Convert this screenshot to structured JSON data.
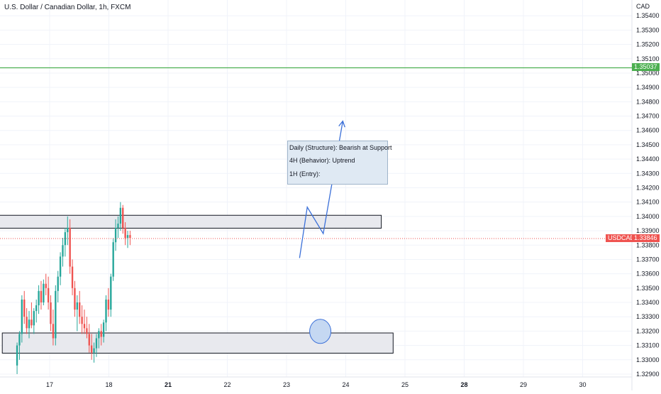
{
  "header": {
    "title": "U.S. Dollar / Canadian Dollar, 1h, FXCM",
    "currency": "CAD"
  },
  "info_box": {
    "lines": [
      "Daily (Structure): Bearish at Support",
      "4H (Behavior): Uptrend",
      "1H (Entry):"
    ]
  },
  "price_labels": {
    "symbol": "USDCAD",
    "current": "1.33846",
    "level": "1.35037"
  },
  "colors": {
    "bull": "#26a69a",
    "bear": "#ef5350",
    "level_line": "#4caf50",
    "current_line": "#ef5350",
    "projection": "#3a6fd8",
    "zone_fill": "#e8e9ee",
    "zone_border": "#131722",
    "marker": "#c5d8f2"
  },
  "chart_data": {
    "type": "candlestick",
    "title": "U.S. Dollar / Canadian Dollar, 1h, FXCM",
    "y_unit": "CAD",
    "ylim": [
      1.3288,
      1.3551
    ],
    "y_ticks": [
      "1.35400",
      "1.35300",
      "1.35200",
      "1.35100",
      "1.35000",
      "1.34900",
      "1.34800",
      "1.34700",
      "1.34600",
      "1.34500",
      "1.34400",
      "1.34300",
      "1.34200",
      "1.34100",
      "1.34000",
      "1.33900",
      "1.33800",
      "1.33700",
      "1.33600",
      "1.33500",
      "1.33400",
      "1.33300",
      "1.33200",
      "1.33100",
      "1.33000",
      "1.32900"
    ],
    "x_ticks": [
      {
        "label": "17",
        "day": 17,
        "bold": false
      },
      {
        "label": "18",
        "day": 18,
        "bold": false
      },
      {
        "label": "21",
        "day": 19,
        "bold": true
      },
      {
        "label": "22",
        "day": 20,
        "bold": false
      },
      {
        "label": "23",
        "day": 21,
        "bold": false
      },
      {
        "label": "24",
        "day": 22,
        "bold": false
      },
      {
        "label": "25",
        "day": 23,
        "bold": false
      },
      {
        "label": "28",
        "day": 24,
        "bold": true
      },
      {
        "label": "29",
        "day": 25,
        "bold": false
      },
      {
        "label": "30",
        "day": 26,
        "bold": false
      }
    ],
    "levels": {
      "resistance_line": 1.35037,
      "current_price": 1.33846,
      "upper_zone": {
        "start_day": 16.0,
        "end_day": 22.6,
        "top": 1.34008,
        "bottom": 1.33918
      },
      "lower_zone": {
        "start_day": 16.2,
        "end_day": 22.8,
        "top": 1.33187,
        "bottom": 1.33046
      }
    },
    "candles": [
      {
        "o": 1.3296,
        "h": 1.3312,
        "l": 1.329,
        "c": 1.331
      },
      {
        "o": 1.331,
        "h": 1.332,
        "l": 1.33,
        "c": 1.3318
      },
      {
        "o": 1.3318,
        "h": 1.3345,
        "l": 1.3312,
        "c": 1.3342
      },
      {
        "o": 1.3342,
        "h": 1.3348,
        "l": 1.3325,
        "c": 1.333
      },
      {
        "o": 1.333,
        "h": 1.3336,
        "l": 1.3318,
        "c": 1.3322
      },
      {
        "o": 1.3322,
        "h": 1.3334,
        "l": 1.3315,
        "c": 1.3328
      },
      {
        "o": 1.3328,
        "h": 1.334,
        "l": 1.3322,
        "c": 1.3324
      },
      {
        "o": 1.3324,
        "h": 1.3336,
        "l": 1.3318,
        "c": 1.3334
      },
      {
        "o": 1.3334,
        "h": 1.3342,
        "l": 1.3326,
        "c": 1.3338
      },
      {
        "o": 1.3338,
        "h": 1.3352,
        "l": 1.3332,
        "c": 1.3348
      },
      {
        "o": 1.3348,
        "h": 1.3355,
        "l": 1.3335,
        "c": 1.334
      },
      {
        "o": 1.334,
        "h": 1.3356,
        "l": 1.3338,
        "c": 1.3353
      },
      {
        "o": 1.3353,
        "h": 1.336,
        "l": 1.3345,
        "c": 1.335
      },
      {
        "o": 1.335,
        "h": 1.3358,
        "l": 1.3335,
        "c": 1.334
      },
      {
        "o": 1.334,
        "h": 1.3345,
        "l": 1.332,
        "c": 1.3325
      },
      {
        "o": 1.3325,
        "h": 1.3335,
        "l": 1.331,
        "c": 1.3315
      },
      {
        "o": 1.3315,
        "h": 1.3352,
        "l": 1.331,
        "c": 1.3348
      },
      {
        "o": 1.3348,
        "h": 1.3362,
        "l": 1.334,
        "c": 1.3358
      },
      {
        "o": 1.3358,
        "h": 1.3375,
        "l": 1.3352,
        "c": 1.3372
      },
      {
        "o": 1.3372,
        "h": 1.3385,
        "l": 1.3365,
        "c": 1.338
      },
      {
        "o": 1.338,
        "h": 1.3392,
        "l": 1.3372,
        "c": 1.3389
      },
      {
        "o": 1.3389,
        "h": 1.34,
        "l": 1.338,
        "c": 1.3392
      },
      {
        "o": 1.3392,
        "h": 1.3398,
        "l": 1.336,
        "c": 1.3365
      },
      {
        "o": 1.3365,
        "h": 1.337,
        "l": 1.3345,
        "c": 1.335
      },
      {
        "o": 1.335,
        "h": 1.3355,
        "l": 1.333,
        "c": 1.3335
      },
      {
        "o": 1.3335,
        "h": 1.3345,
        "l": 1.332,
        "c": 1.334
      },
      {
        "o": 1.334,
        "h": 1.3348,
        "l": 1.3325,
        "c": 1.333
      },
      {
        "o": 1.333,
        "h": 1.3338,
        "l": 1.3318,
        "c": 1.3325
      },
      {
        "o": 1.3325,
        "h": 1.3335,
        "l": 1.3318,
        "c": 1.3322
      },
      {
        "o": 1.3322,
        "h": 1.333,
        "l": 1.3315,
        "c": 1.3318
      },
      {
        "o": 1.3318,
        "h": 1.3325,
        "l": 1.3305,
        "c": 1.331
      },
      {
        "o": 1.331,
        "h": 1.3318,
        "l": 1.33,
        "c": 1.3305
      },
      {
        "o": 1.3305,
        "h": 1.3312,
        "l": 1.3298,
        "c": 1.3308
      },
      {
        "o": 1.3308,
        "h": 1.3318,
        "l": 1.3302,
        "c": 1.3315
      },
      {
        "o": 1.3315,
        "h": 1.3322,
        "l": 1.3308,
        "c": 1.332
      },
      {
        "o": 1.332,
        "h": 1.3325,
        "l": 1.331,
        "c": 1.3316
      },
      {
        "o": 1.3316,
        "h": 1.3328,
        "l": 1.3312,
        "c": 1.3326
      },
      {
        "o": 1.3326,
        "h": 1.3345,
        "l": 1.332,
        "c": 1.3342
      },
      {
        "o": 1.3342,
        "h": 1.335,
        "l": 1.333,
        "c": 1.3335
      },
      {
        "o": 1.3335,
        "h": 1.336,
        "l": 1.333,
        "c": 1.3358
      },
      {
        "o": 1.3358,
        "h": 1.3385,
        "l": 1.3355,
        "c": 1.3382
      },
      {
        "o": 1.3382,
        "h": 1.3398,
        "l": 1.3376,
        "c": 1.3392
      },
      {
        "o": 1.3392,
        "h": 1.34,
        "l": 1.3385,
        "c": 1.3395
      },
      {
        "o": 1.3395,
        "h": 1.341,
        "l": 1.339,
        "c": 1.3406
      },
      {
        "o": 1.3406,
        "h": 1.3408,
        "l": 1.3388,
        "c": 1.3392
      },
      {
        "o": 1.3392,
        "h": 1.3396,
        "l": 1.338,
        "c": 1.3385
      },
      {
        "o": 1.3385,
        "h": 1.339,
        "l": 1.3378,
        "c": 1.3387
      },
      {
        "o": 1.3387,
        "h": 1.339,
        "l": 1.338,
        "c": 1.3385
      }
    ],
    "candles_start_day": 16.45,
    "candle_step_day": 0.0406,
    "projection_path": [
      {
        "day": 21.22,
        "y": 1.3371
      },
      {
        "day": 21.35,
        "y": 1.34065
      },
      {
        "day": 21.62,
        "y": 1.3388
      },
      {
        "day": 21.95,
        "y": 1.34665
      }
    ],
    "marker_circle": {
      "day": 21.57,
      "y": 1.33198
    }
  }
}
